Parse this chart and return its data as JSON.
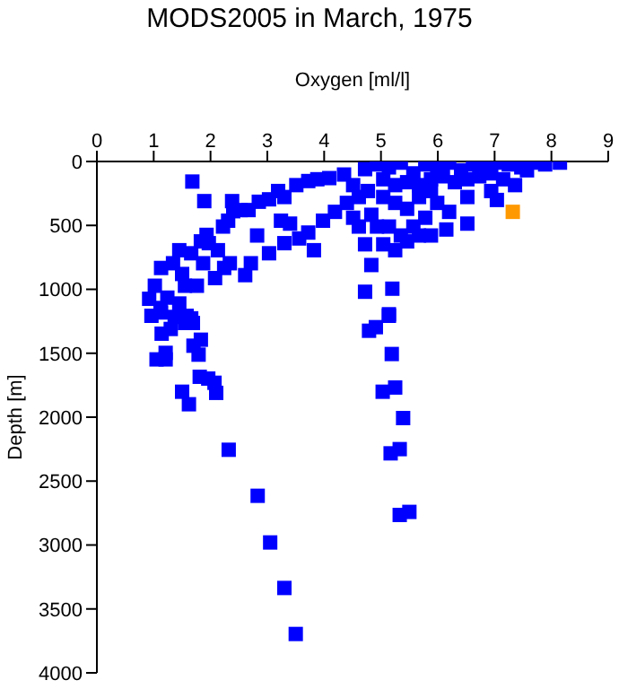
{
  "chart_data": {
    "type": "scatter",
    "title": "MODS2005 in March, 1975",
    "xlabel": "Oxygen [ml/l]",
    "ylabel": "Depth [m]",
    "xlim": [
      0,
      9
    ],
    "xticks": [
      0,
      1,
      2,
      3,
      4,
      5,
      6,
      7,
      8,
      9
    ],
    "ylim": [
      4000,
      0
    ],
    "yticks": [
      0,
      500,
      1000,
      1500,
      2000,
      2500,
      3000,
      3500,
      4000
    ],
    "marker": "square",
    "grid": false,
    "legend": false,
    "series": [
      {
        "color": "#0000ff",
        "x": [
          2.32,
          2.83,
          3.05,
          3.3,
          3.5,
          5.39,
          5.33,
          5.17,
          5.33,
          5.5,
          5.19,
          5.25,
          5.03,
          4.79,
          4.91,
          5.14,
          1.5,
          1.62,
          2.1,
          1.96,
          1.81,
          1.79,
          1.83,
          1.7,
          1.05,
          1.21,
          1.21,
          1.14,
          0.96,
          1.12,
          1.37,
          1.3,
          1.58,
          1.69,
          1.55,
          2.07,
          1.68,
          1.89,
          2.38,
          1.93,
          1.83,
          1.97,
          2.13,
          2.22,
          2.31,
          2.4,
          2.53,
          2.67,
          2.85,
          3.03,
          3.19,
          3.3,
          3.51,
          3.72,
          3.88,
          4.09,
          4.35,
          4.72,
          2.82,
          3.03,
          3.3,
          3.56,
          3.82,
          3.98,
          4.19,
          4.4,
          4.51,
          4.61,
          4.72,
          4.83,
          4.72,
          5.2,
          5.14,
          3.24,
          3.4,
          3.72,
          2.71,
          2.61,
          2.08,
          1.87,
          1.45,
          1.34,
          1.13,
          1.02,
          0.92,
          1.24,
          1.55,
          1.76,
          1.45,
          1.13,
          1.66,
          1.5,
          1.66,
          2.34,
          2.24,
          4.93,
          5.14,
          5.35,
          5.57,
          5.78,
          5.99,
          6.2,
          6.41,
          6.62,
          6.83,
          7.04,
          7.25,
          7.47,
          7.68,
          7.89,
          8.15,
          5.04,
          5.25,
          5.46,
          5.67,
          5.88,
          6.09,
          6.3,
          6.52,
          6.73,
          6.94,
          7.15,
          7.36,
          7.57,
          6.94,
          6.52,
          7.04,
          5.04,
          5.25,
          5.46,
          5.67,
          5.88,
          5.99,
          6.2,
          5.78,
          5.57,
          5.35,
          5.14,
          5.04,
          5.25,
          5.46,
          5.67,
          5.88,
          4.83,
          4.93,
          4.61,
          4.51,
          4.77,
          6.52,
          6.15
        ],
        "values": [
          2255,
          2615,
          2980,
          3336,
          3696,
          2007,
          2250,
          2283,
          2765,
          2741,
          1506,
          1768,
          1801,
          1324,
          1296,
          1207,
          1801,
          1899,
          1810,
          1698,
          1684,
          1511,
          1394,
          1441,
          1548,
          1548,
          1497,
          1347,
          1207,
          1146,
          1216,
          1310,
          1207,
          1263,
          1263,
          1731,
          157,
          310,
          310,
          574,
          625,
          639,
          694,
          509,
          463,
          389,
          380,
          380,
          315,
          296,
          231,
          278,
          185,
          153,
          139,
          130,
          102,
          60,
          579,
          718,
          639,
          602,
          694,
          463,
          394,
          324,
          440,
          509,
          648,
          810,
          1019,
          995,
          1195,
          463,
          486,
          556,
          796,
          889,
          912,
          796,
          694,
          796,
          833,
          972,
          1074,
          1065,
          972,
          972,
          1111,
          1181,
          1227,
          880,
          718,
          796,
          833,
          23,
          46,
          9,
          93,
          23,
          46,
          9,
          69,
          23,
          46,
          9,
          23,
          46,
          9,
          23,
          9,
          139,
          185,
          162,
          185,
          139,
          116,
          162,
          139,
          116,
          93,
          139,
          185,
          69,
          231,
          278,
          301,
          278,
          324,
          370,
          278,
          231,
          324,
          394,
          440,
          509,
          579,
          509,
          648,
          694,
          625,
          579,
          579,
          417,
          509,
          278,
          185,
          231,
          486,
          532
        ]
      },
      {
        "color": "#ff9900",
        "x": [
          7.32
        ],
        "values": [
          394
        ]
      }
    ]
  }
}
